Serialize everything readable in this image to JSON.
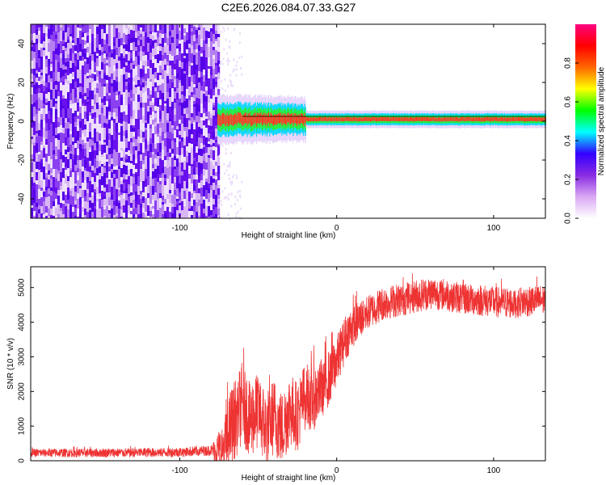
{
  "figure": {
    "title": "C2E6.2026.084.07.33.G27"
  },
  "chart_data": [
    {
      "type": "heatmap",
      "name": "spectrogram",
      "xlabel": "Height of straight line (km)",
      "ylabel": "Frequency (Hz)",
      "xlim": [
        -195,
        133
      ],
      "ylim": [
        -50,
        50
      ],
      "x_ticks": [
        -100,
        0,
        100
      ],
      "y_ticks": [
        -40,
        -20,
        0,
        20,
        40
      ],
      "noise_region_x": [
        -195,
        -76
      ],
      "signal_region_x": [
        -76,
        133
      ],
      "signal_center_freq_hz": 1,
      "colorbar": {
        "label": "Normalized spectral amplitude",
        "range": [
          0,
          1
        ],
        "ticks": [
          0.0,
          0.2,
          0.4,
          0.6,
          0.8
        ],
        "colormap": [
          "#ffffff",
          "#d9a8f4",
          "#8a2be2",
          "#3300ff",
          "#00ffff",
          "#00ff00",
          "#ffff00",
          "#ff6600",
          "#ff0000",
          "#ff0080"
        ]
      }
    },
    {
      "type": "line",
      "name": "snr",
      "xlabel": "Height of straight line (km)",
      "ylabel": "SNR (10 * v/v)",
      "xlim": [
        -195,
        133
      ],
      "ylim": [
        0,
        5600
      ],
      "x_ticks": [
        -100,
        0,
        100
      ],
      "y_ticks": [
        0,
        1000,
        2000,
        3000,
        4000,
        5000
      ],
      "color": "#ee3333",
      "profile": {
        "x": [
          -195,
          -150,
          -100,
          -80,
          -72,
          -68,
          -60,
          -55,
          -50,
          -45,
          -40,
          -35,
          -30,
          -25,
          -20,
          -15,
          -10,
          -5,
          0,
          5,
          10,
          20,
          30,
          40,
          50,
          60,
          70,
          80,
          90,
          100,
          110,
          120,
          133
        ],
        "y": [
          230,
          230,
          250,
          300,
          350,
          900,
          1700,
          1200,
          1500,
          900,
          1300,
          900,
          1500,
          1300,
          1900,
          1800,
          2100,
          2400,
          2900,
          3500,
          3900,
          4300,
          4550,
          4650,
          4750,
          4850,
          4800,
          4700,
          4650,
          4600,
          4550,
          4600,
          4650
        ]
      },
      "noise_amplitude": {
        "x": [
          -195,
          -80,
          -68,
          -30,
          -10,
          20,
          133
        ],
        "y": [
          120,
          150,
          1200,
          1100,
          900,
          500,
          450
        ]
      }
    }
  ]
}
